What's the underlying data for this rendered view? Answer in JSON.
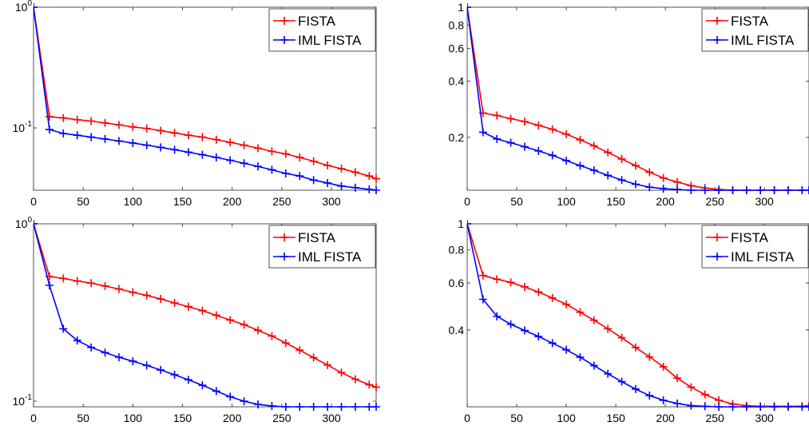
{
  "chart_data": [
    {
      "type": "line",
      "yscale": "log",
      "xlim": [
        0,
        345
      ],
      "ylim": [
        0.0305,
        1.0
      ],
      "xticks": [
        0,
        50,
        100,
        150,
        200,
        250,
        300
      ],
      "xtick_labels": [
        "0",
        "50",
        "100",
        "150",
        "200",
        "250",
        "300"
      ],
      "yticks": [
        0.1,
        1.0
      ],
      "ytick_labels": [
        {
          "base": "10",
          "exp": "-1"
        },
        {
          "base": "10",
          "exp": "0"
        }
      ],
      "grid": false,
      "legend_position": "top-right",
      "series": [
        {
          "name": "FISTA",
          "color": "#ff0000",
          "x": [
            0,
            16,
            30,
            44,
            58,
            72,
            86,
            100,
            114,
            128,
            142,
            156,
            170,
            184,
            198,
            212,
            226,
            240,
            254,
            268,
            282,
            296,
            310,
            324,
            338,
            345
          ],
          "y": [
            1.0,
            0.124,
            0.121,
            0.117,
            0.114,
            0.11,
            0.106,
            0.102,
            0.099,
            0.095,
            0.091,
            0.087,
            0.084,
            0.08,
            0.076,
            0.072,
            0.068,
            0.064,
            0.061,
            0.057,
            0.053,
            0.049,
            0.046,
            0.043,
            0.04,
            0.038
          ]
        },
        {
          "name": "IML FISTA",
          "color": "#0000ff",
          "x": [
            0,
            16,
            30,
            44,
            58,
            72,
            86,
            100,
            114,
            128,
            142,
            156,
            170,
            184,
            198,
            212,
            226,
            240,
            254,
            268,
            282,
            296,
            310,
            324,
            338,
            345
          ],
          "y": [
            1.0,
            0.097,
            0.09,
            0.087,
            0.084,
            0.081,
            0.078,
            0.075,
            0.072,
            0.069,
            0.066,
            0.063,
            0.06,
            0.057,
            0.054,
            0.051,
            0.048,
            0.045,
            0.042,
            0.04,
            0.037,
            0.035,
            0.033,
            0.032,
            0.031,
            0.0305
          ]
        }
      ]
    },
    {
      "type": "line",
      "yscale": "log",
      "xlim": [
        0,
        345
      ],
      "ylim": [
        0.104,
        1.0
      ],
      "xticks": [
        0,
        50,
        100,
        150,
        200,
        250,
        300
      ],
      "xtick_labels": [
        "0",
        "50",
        "100",
        "150",
        "200",
        "250",
        "300"
      ],
      "yticks": [
        0.2,
        0.4,
        0.6,
        0.8,
        1.0
      ],
      "ytick_labels": [
        "0.2",
        "0.4",
        "0.6",
        "0.8",
        "1"
      ],
      "grid": false,
      "legend_position": "top-right",
      "series": [
        {
          "name": "FISTA",
          "color": "#ff0000",
          "x": [
            0,
            16,
            30,
            44,
            58,
            72,
            86,
            100,
            114,
            128,
            142,
            156,
            170,
            184,
            198,
            212,
            226,
            240,
            254,
            268,
            282,
            296,
            310,
            324,
            338,
            345
          ],
          "y": [
            1.0,
            0.27,
            0.262,
            0.252,
            0.243,
            0.232,
            0.221,
            0.208,
            0.194,
            0.18,
            0.166,
            0.153,
            0.141,
            0.13,
            0.121,
            0.115,
            0.11,
            0.107,
            0.105,
            0.104,
            0.104,
            0.104,
            0.104,
            0.104,
            0.104,
            0.104
          ]
        },
        {
          "name": "IML FISTA",
          "color": "#0000ff",
          "x": [
            0,
            16,
            30,
            44,
            58,
            72,
            86,
            100,
            114,
            128,
            142,
            156,
            170,
            184,
            198,
            212,
            226,
            240,
            254,
            268,
            282,
            296,
            310,
            324,
            338,
            345
          ],
          "y": [
            1.0,
            0.213,
            0.196,
            0.187,
            0.178,
            0.169,
            0.16,
            0.15,
            0.141,
            0.133,
            0.125,
            0.118,
            0.112,
            0.108,
            0.106,
            0.105,
            0.104,
            0.104,
            0.104,
            0.104,
            0.104,
            0.104,
            0.104,
            0.104,
            0.104,
            0.104
          ]
        }
      ]
    },
    {
      "type": "line",
      "yscale": "log",
      "xlim": [
        0,
        345
      ],
      "ylim": [
        0.093,
        1.0
      ],
      "xticks": [
        0,
        50,
        100,
        150,
        200,
        250,
        300
      ],
      "xtick_labels": [
        "0",
        "50",
        "100",
        "150",
        "200",
        "250",
        "300"
      ],
      "yticks": [
        0.1,
        1.0
      ],
      "ytick_labels": [
        {
          "base": "10",
          "exp": "-1"
        },
        {
          "base": "10",
          "exp": "0"
        }
      ],
      "grid": false,
      "legend_position": "top-right",
      "series": [
        {
          "name": "FISTA",
          "color": "#ff0000",
          "x": [
            0,
            16,
            30,
            44,
            58,
            72,
            86,
            100,
            114,
            128,
            142,
            156,
            170,
            184,
            198,
            212,
            226,
            240,
            254,
            268,
            282,
            296,
            310,
            324,
            338,
            345
          ],
          "y": [
            1.0,
            0.505,
            0.492,
            0.476,
            0.463,
            0.446,
            0.429,
            0.411,
            0.395,
            0.377,
            0.358,
            0.341,
            0.324,
            0.305,
            0.287,
            0.27,
            0.251,
            0.233,
            0.213,
            0.194,
            0.176,
            0.16,
            0.145,
            0.133,
            0.124,
            0.12
          ]
        },
        {
          "name": "IML FISTA",
          "color": "#0000ff",
          "x": [
            0,
            16,
            30,
            44,
            58,
            72,
            86,
            100,
            114,
            128,
            142,
            156,
            170,
            184,
            198,
            212,
            226,
            240,
            254,
            268,
            282,
            296,
            310,
            324,
            338,
            345
          ],
          "y": [
            1.0,
            0.45,
            0.256,
            0.22,
            0.201,
            0.188,
            0.177,
            0.168,
            0.159,
            0.15,
            0.141,
            0.132,
            0.123,
            0.114,
            0.106,
            0.1,
            0.096,
            0.094,
            0.093,
            0.093,
            0.093,
            0.093,
            0.093,
            0.093,
            0.093,
            0.093
          ]
        }
      ]
    },
    {
      "type": "line",
      "yscale": "log",
      "xlim": [
        0,
        345
      ],
      "ylim": [
        0.206,
        1.0
      ],
      "xticks": [
        0,
        50,
        100,
        150,
        200,
        250,
        300
      ],
      "xtick_labels": [
        "0",
        "50",
        "100",
        "150",
        "200",
        "250",
        "300"
      ],
      "yticks": [
        0.4,
        0.6,
        0.8,
        1.0
      ],
      "ytick_labels": [
        "0.4",
        "0.6",
        "0.8",
        "1"
      ],
      "grid": false,
      "legend_position": "top-right",
      "series": [
        {
          "name": "FISTA",
          "color": "#ff0000",
          "x": [
            0,
            16,
            30,
            44,
            58,
            72,
            86,
            100,
            114,
            128,
            142,
            156,
            170,
            184,
            198,
            212,
            226,
            240,
            254,
            268,
            282,
            296,
            310,
            324,
            338,
            345
          ],
          "y": [
            1.0,
            0.64,
            0.62,
            0.603,
            0.58,
            0.555,
            0.527,
            0.499,
            0.466,
            0.435,
            0.404,
            0.374,
            0.344,
            0.317,
            0.291,
            0.264,
            0.244,
            0.229,
            0.218,
            0.211,
            0.208,
            0.207,
            0.207,
            0.207,
            0.207,
            0.208
          ]
        },
        {
          "name": "IML FISTA",
          "color": "#0000ff",
          "x": [
            0,
            16,
            30,
            44,
            58,
            72,
            86,
            100,
            114,
            128,
            142,
            156,
            170,
            184,
            198,
            212,
            226,
            240,
            254,
            268,
            282,
            296,
            310,
            324,
            338,
            345
          ],
          "y": [
            1.0,
            0.521,
            0.45,
            0.42,
            0.398,
            0.378,
            0.357,
            0.337,
            0.316,
            0.294,
            0.274,
            0.256,
            0.24,
            0.227,
            0.218,
            0.212,
            0.208,
            0.207,
            0.206,
            0.206,
            0.206,
            0.206,
            0.206,
            0.206,
            0.206,
            0.206
          ]
        }
      ]
    }
  ]
}
